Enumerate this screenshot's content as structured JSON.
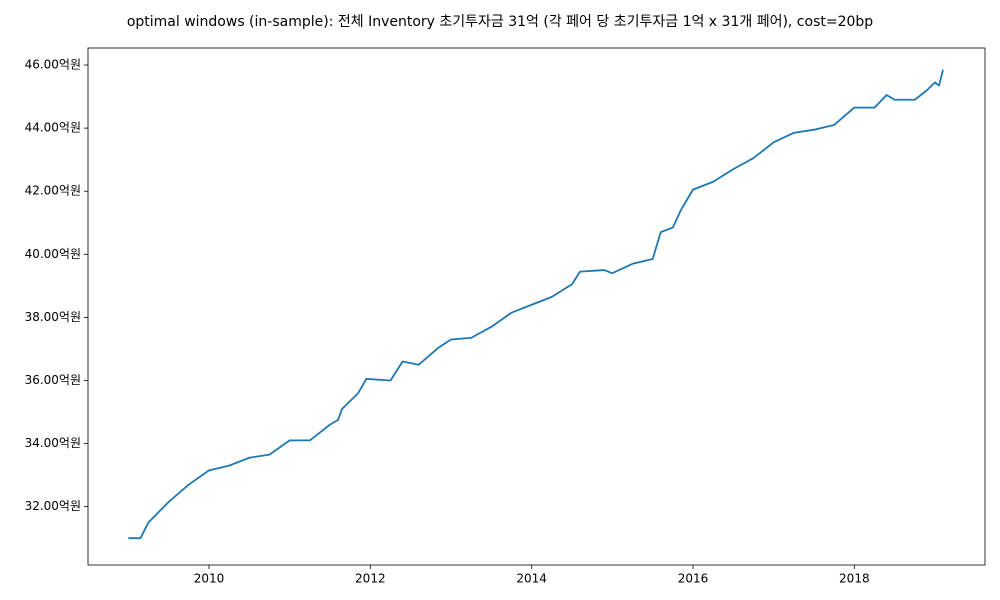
{
  "chart_data": {
    "type": "line",
    "title": "optimal windows (in-sample): 전체 Inventory 초기투자금 31억 (각 페어 당 초기투자금 1억 x 31개 페어), cost=20bp",
    "x": [
      2009.0,
      2009.15,
      2009.25,
      2009.5,
      2009.75,
      2010.0,
      2010.25,
      2010.5,
      2010.75,
      2011.0,
      2011.25,
      2011.5,
      2011.6,
      2011.65,
      2011.85,
      2011.95,
      2012.25,
      2012.4,
      2012.6,
      2012.85,
      2013.0,
      2013.25,
      2013.5,
      2013.75,
      2014.0,
      2014.25,
      2014.5,
      2014.6,
      2014.9,
      2015.0,
      2015.25,
      2015.5,
      2015.6,
      2015.75,
      2015.85,
      2016.0,
      2016.25,
      2016.5,
      2016.75,
      2017.0,
      2017.25,
      2017.5,
      2017.75,
      2018.0,
      2018.25,
      2018.4,
      2018.5,
      2018.75,
      2018.9,
      2019.0,
      2019.05,
      2019.1
    ],
    "series": [
      {
        "color": "#1f77b4",
        "values": [
          31.0,
          31.0,
          31.5,
          32.15,
          32.7,
          33.15,
          33.3,
          33.55,
          33.65,
          34.1,
          34.1,
          34.6,
          34.75,
          35.1,
          35.6,
          36.05,
          36.0,
          36.6,
          36.5,
          37.05,
          37.3,
          37.35,
          37.7,
          38.15,
          38.4,
          38.65,
          39.05,
          39.45,
          39.5,
          39.4,
          39.7,
          39.85,
          40.7,
          40.85,
          41.4,
          42.05,
          42.3,
          42.7,
          43.05,
          43.55,
          43.85,
          43.95,
          44.1,
          44.65,
          44.65,
          45.05,
          44.9,
          44.9,
          45.2,
          45.45,
          45.35,
          45.85
        ]
      }
    ],
    "xlim": [
      2008.5,
      2019.62
    ],
    "xticks": [
      2010,
      2012,
      2014,
      2016,
      2018
    ],
    "ylim": [
      30.15,
      46.54
    ],
    "yticks": [
      {
        "value": 32,
        "label": "32.00억원"
      },
      {
        "value": 34,
        "label": "34.00억원"
      },
      {
        "value": 36,
        "label": "36.00억원"
      },
      {
        "value": 38,
        "label": "38.00억원"
      },
      {
        "value": 40,
        "label": "40.00억원"
      },
      {
        "value": 42,
        "label": "42.00억원"
      },
      {
        "value": 44,
        "label": "44.00억원"
      },
      {
        "value": 46,
        "label": "46.00억원"
      }
    ],
    "grid": false
  }
}
